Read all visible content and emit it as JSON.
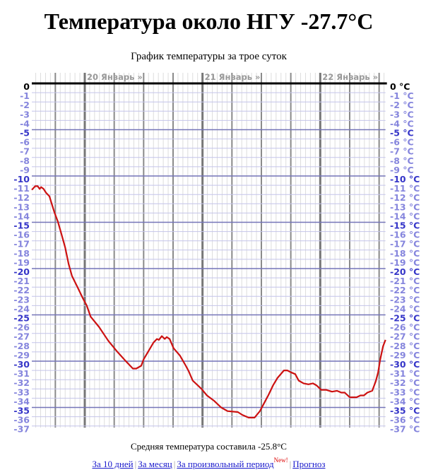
{
  "page": {
    "title": "Температура около НГУ -27.7°C",
    "subtitle": "График температуры за трое суток"
  },
  "footer": {
    "average_text": "Средняя температура составила -25.8°C",
    "links": [
      {
        "label": "За 10 дней"
      },
      {
        "label": "За месяц"
      },
      {
        "label": "За произвольный период"
      },
      {
        "label": "Прогноз"
      }
    ],
    "separator": "|",
    "new_badge": "New!"
  },
  "colors": {
    "line": "#cc1111",
    "zero_line": "#000000",
    "label_zero": "#000000",
    "label_major": "#3535c8",
    "label_minor": "#8585dd",
    "grid_major_h": "#7474b8",
    "grid_minor_h": "#c4c4ea",
    "grid_hour_v": "#dddddd",
    "grid_6h_v": "#8a8a8a",
    "grid_day_v": "#777777",
    "day_label": "#999999"
  },
  "chart_data": {
    "type": "line",
    "title": "График температуры за трое суток",
    "xlabel": "",
    "ylabel": "°C",
    "ylim": [
      -37,
      0
    ],
    "grid": true,
    "x_range_hours": [
      -10.8,
      61.3
    ],
    "day_label_hours": [
      0,
      24,
      48
    ],
    "day_labels": [
      "20 Январь »",
      "21 Январь »",
      "22 Январь »"
    ],
    "y_tick_labels_left": [
      "0",
      "-1",
      "-2",
      "-3",
      "-4",
      "-5",
      "-6",
      "-7",
      "-8",
      "-9",
      "-10",
      "-11",
      "-12",
      "-13",
      "-14",
      "-15",
      "-16",
      "-17",
      "-18",
      "-19",
      "-20",
      "-21",
      "-22",
      "-23",
      "-24",
      "-25",
      "-26",
      "-27",
      "-28",
      "-29",
      "-30",
      "-31",
      "-32",
      "-33",
      "-34",
      "-35",
      "-36",
      "-37"
    ],
    "y_tick_labels_right": [
      "0 °C",
      "-1 °C",
      "-2 °C",
      "-3 °C",
      "-4 °C",
      "-5 °C",
      "-6 °C",
      "-7 °C",
      "-8 °C",
      "-9 °C",
      "-10 °C",
      "-11 °C",
      "-12 °C",
      "-13 °C",
      "-14 °C",
      "-15 °C",
      "-16 °C",
      "-17 °C",
      "-18 °C",
      "-19 °C",
      "-20 °C",
      "-21 °C",
      "-22 °C",
      "-23 °C",
      "-24 °C",
      "-25 °C",
      "-26 °C",
      "-27 °C",
      "-28 °C",
      "-29 °C",
      "-30 °C",
      "-31 °C",
      "-32 °C",
      "-33 °C",
      "-34 °C",
      "-35 °C",
      "-36 °C",
      "-37 °C"
    ],
    "x": [
      -10.8,
      -10.1,
      -9.6,
      -9.2,
      -8.9,
      -8.4,
      -7.9,
      -7.2,
      -6.8,
      -6.2,
      -5.5,
      -4.8,
      -4.0,
      -3.3,
      -2.6,
      -1.4,
      -0.4,
      0,
      0.4,
      1.2,
      2.9,
      4.8,
      6.5,
      8.2,
      9.8,
      10.5,
      11.5,
      12.0,
      13.0,
      14.0,
      14.7,
      15.1,
      15.7,
      16.3,
      16.7,
      17.3,
      18.1,
      19.4,
      20.6,
      21.2,
      22.0,
      23.8,
      24.9,
      26.4,
      27.8,
      29.1,
      31.2,
      32.1,
      33.4,
      34.6,
      35.7,
      37.0,
      37.4,
      38.4,
      39.3,
      40.6,
      41.3,
      42.0,
      42.9,
      43.6,
      44.6,
      45.6,
      46.5,
      47.2,
      48.2,
      49.2,
      50.4,
      51.4,
      52.3,
      53.0,
      54.0,
      55.4,
      56.2,
      56.9,
      57.6,
      58.6,
      59.3,
      59.8,
      60.2,
      60.8,
      61.3
    ],
    "series": [
      {
        "name": "Температура",
        "values": [
          -11.5,
          -11.1,
          -11.1,
          -11.4,
          -11.2,
          -11.4,
          -11.8,
          -12.2,
          -12.9,
          -13.9,
          -14.9,
          -16.2,
          -17.7,
          -19.5,
          -20.8,
          -22.1,
          -23.2,
          -23.6,
          -24.0,
          -25.2,
          -26.3,
          -27.8,
          -28.9,
          -29.9,
          -30.8,
          -30.8,
          -30.5,
          -29.8,
          -28.9,
          -28.0,
          -27.6,
          -27.7,
          -27.3,
          -27.6,
          -27.4,
          -27.6,
          -28.6,
          -29.4,
          -30.5,
          -31.1,
          -32.1,
          -33.0,
          -33.7,
          -34.3,
          -35.0,
          -35.4,
          -35.5,
          -35.8,
          -36.1,
          -36.1,
          -35.4,
          -34.1,
          -33.7,
          -32.6,
          -31.8,
          -31.0,
          -31.0,
          -31.2,
          -31.4,
          -32.1,
          -32.4,
          -32.5,
          -32.4,
          -32.6,
          -33.1,
          -33.1,
          -33.3,
          -33.2,
          -33.4,
          -33.4,
          -33.9,
          -33.9,
          -33.7,
          -33.7,
          -33.4,
          -33.2,
          -32.2,
          -31.2,
          -29.9,
          -28.4,
          -27.7
        ]
      }
    ]
  }
}
